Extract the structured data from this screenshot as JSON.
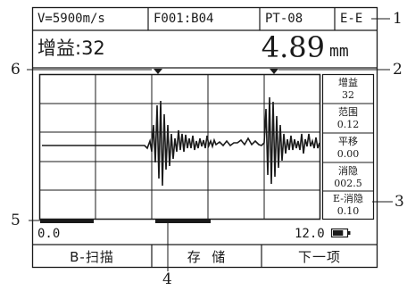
{
  "header": {
    "velocity": "V=5900m/s",
    "file": "F001:B04",
    "probe": "PT-08",
    "mode": "E-E"
  },
  "gain_label": "增益:32",
  "reading": {
    "value": "4.89",
    "unit": "mm"
  },
  "side_panel": [
    {
      "label": "增益",
      "value": "32"
    },
    {
      "label": "范围",
      "value": "0.12"
    },
    {
      "label": "平移",
      "value": "0.00"
    },
    {
      "label": "消隐",
      "value": "002.5"
    },
    {
      "label": "E-消隐",
      "value": "0.10"
    }
  ],
  "range": {
    "start": "0.0",
    "end": "12.0"
  },
  "battery_level": 0.75,
  "buttons": {
    "b_scan": "B-扫描",
    "store": "存  储",
    "next": "下一项"
  },
  "callouts": [
    "1",
    "2",
    "3",
    "4",
    "5",
    "6"
  ]
}
